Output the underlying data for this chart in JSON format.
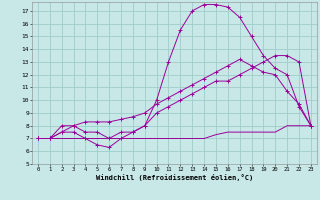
{
  "bg_color": "#c8e8e8",
  "grid_color": "#a0cccc",
  "line_color": "#990099",
  "xlabel": "Windchill (Refroidissement éolien,°C)",
  "xlim": [
    -0.5,
    23.5
  ],
  "ylim": [
    5,
    17.7
  ],
  "yticks": [
    5,
    6,
    7,
    8,
    9,
    10,
    11,
    12,
    13,
    14,
    15,
    16,
    17
  ],
  "xticks": [
    0,
    1,
    2,
    3,
    4,
    5,
    6,
    7,
    8,
    9,
    10,
    11,
    12,
    13,
    14,
    15,
    16,
    17,
    18,
    19,
    20,
    21,
    22,
    23
  ],
  "lines": [
    {
      "x": [
        0,
        1,
        2,
        3,
        4,
        5,
        6,
        7,
        8,
        9,
        10,
        11,
        12,
        13,
        14,
        15,
        16,
        17,
        18,
        19,
        20,
        21,
        22,
        23
      ],
      "y": [
        7.0,
        7.0,
        8.0,
        8.0,
        7.5,
        7.5,
        7.0,
        7.5,
        7.5,
        8.0,
        9.0,
        9.5,
        10.0,
        10.5,
        11.0,
        11.5,
        11.5,
        12.0,
        12.5,
        13.0,
        13.5,
        13.5,
        13.0,
        8.0
      ],
      "marker": true
    },
    {
      "x": [
        0,
        1,
        2,
        3,
        4,
        5,
        6,
        7,
        8,
        9,
        10,
        11,
        12,
        13,
        14,
        15,
        16,
        17,
        18,
        19,
        20,
        21,
        22,
        23
      ],
      "y": [
        7.0,
        7.0,
        7.5,
        8.0,
        8.3,
        8.3,
        8.3,
        8.5,
        8.7,
        9.0,
        9.7,
        10.2,
        10.7,
        11.2,
        11.7,
        12.2,
        12.7,
        13.2,
        12.7,
        12.2,
        12.0,
        10.7,
        9.7,
        8.0
      ],
      "marker": true
    },
    {
      "x": [
        0,
        1,
        2,
        3,
        4,
        5,
        6,
        7,
        8,
        9,
        10,
        11,
        12,
        13,
        14,
        15,
        16,
        17,
        18,
        19,
        20,
        21,
        22,
        23
      ],
      "y": [
        7.0,
        7.0,
        7.5,
        7.5,
        7.0,
        6.5,
        6.3,
        7.0,
        7.5,
        8.0,
        10.0,
        13.0,
        15.5,
        17.0,
        17.5,
        17.5,
        17.3,
        16.5,
        15.0,
        13.5,
        12.5,
        12.0,
        9.5,
        8.0
      ],
      "marker": true
    },
    {
      "x": [
        0,
        1,
        2,
        3,
        4,
        5,
        6,
        7,
        8,
        9,
        10,
        11,
        12,
        13,
        14,
        15,
        16,
        17,
        18,
        19,
        20,
        21,
        22,
        23
      ],
      "y": [
        7.0,
        7.0,
        7.0,
        7.0,
        7.0,
        7.0,
        7.0,
        7.0,
        7.0,
        7.0,
        7.0,
        7.0,
        7.0,
        7.0,
        7.0,
        7.3,
        7.5,
        7.5,
        7.5,
        7.5,
        7.5,
        8.0,
        8.0,
        8.0
      ],
      "marker": false
    }
  ]
}
